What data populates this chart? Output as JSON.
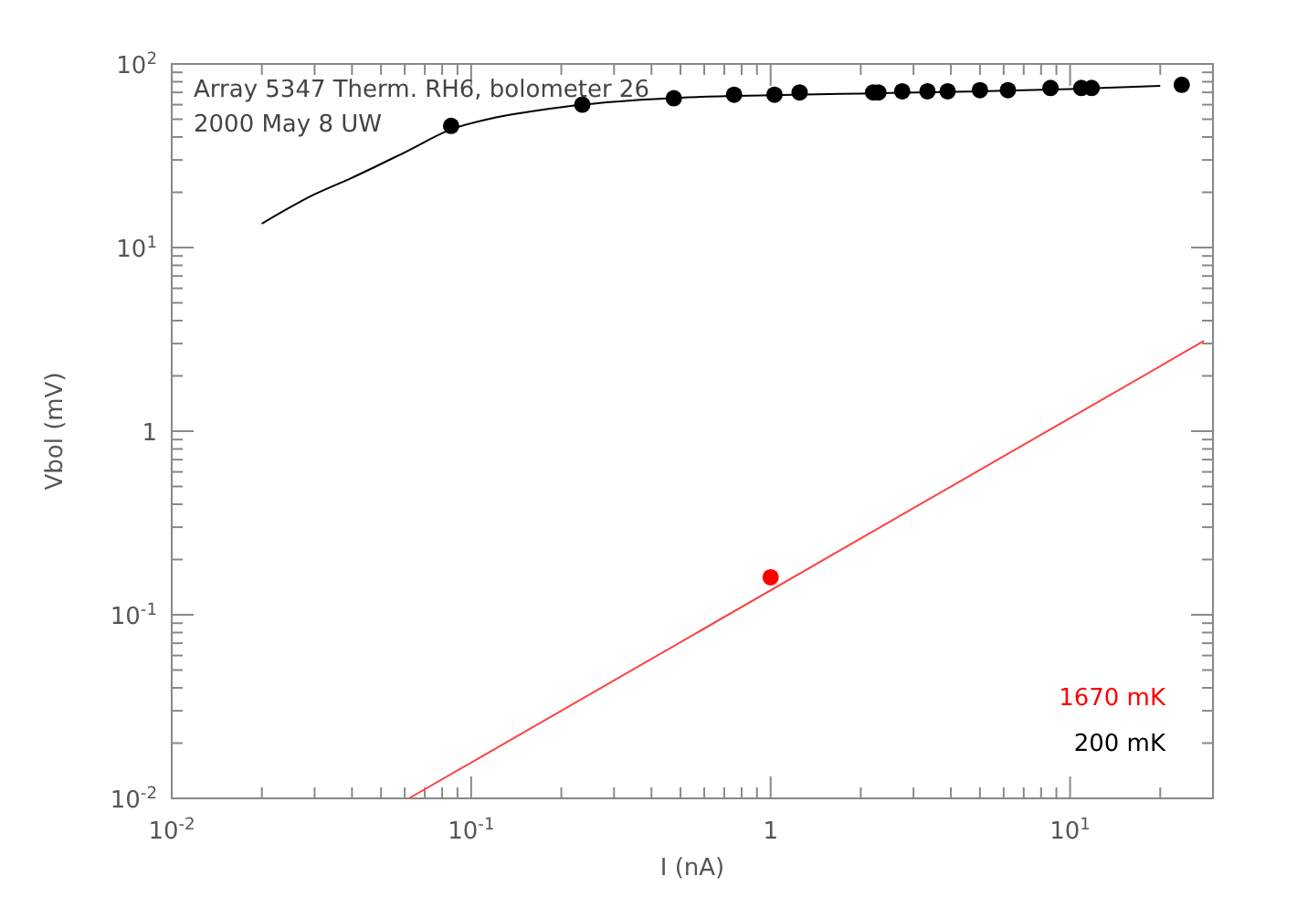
{
  "chart_data": {
    "type": "scatter",
    "xlabel": "I (nA)",
    "ylabel": "Vbol (mV)",
    "log": "xy",
    "xlim": [
      0.01,
      30
    ],
    "ylim": [
      0.01,
      100
    ],
    "xticks": [
      {
        "value": 0.01,
        "label": "10$^{-2}$"
      },
      {
        "value": 0.02,
        "label": null
      },
      {
        "value": 0.03,
        "label": null
      },
      {
        "value": 0.04,
        "label": null
      },
      {
        "value": 0.05,
        "label": null
      },
      {
        "value": 0.06,
        "label": null
      },
      {
        "value": 0.07,
        "label": null
      },
      {
        "value": 0.08,
        "label": null
      },
      {
        "value": 0.09,
        "label": null
      },
      {
        "value": 0.1,
        "label": "10$^{-1}$"
      },
      {
        "value": 0.2,
        "label": null
      },
      {
        "value": 0.3,
        "label": null
      },
      {
        "value": 0.4,
        "label": null
      },
      {
        "value": 0.5,
        "label": null
      },
      {
        "value": 0.6,
        "label": null
      },
      {
        "value": 0.7,
        "label": null
      },
      {
        "value": 0.8,
        "label": null
      },
      {
        "value": 0.9,
        "label": null
      },
      1,
      {
        "value": 2,
        "label": null
      },
      {
        "value": 3,
        "label": null
      },
      {
        "value": 4,
        "label": null
      },
      {
        "value": 5,
        "label": null
      },
      {
        "value": 6,
        "label": null
      },
      {
        "value": 7,
        "label": null
      },
      {
        "value": 8,
        "label": null
      },
      {
        "value": 9,
        "label": null
      },
      {
        "value": 10,
        "label": "10$^{1}$"
      },
      {
        "value": 20,
        "label": null
      }
    ],
    "yticks": [
      {
        "value": 0.01,
        "label": "10$^{-2}$"
      },
      {
        "value": 0.02,
        "label": null
      },
      {
        "value": 0.03,
        "label": null
      },
      {
        "value": 0.04,
        "label": null
      },
      {
        "value": 0.05,
        "label": null
      },
      {
        "value": 0.06,
        "label": null
      },
      {
        "value": 0.07,
        "label": null
      },
      {
        "value": 0.08,
        "label": null
      },
      {
        "value": 0.09,
        "label": null
      },
      {
        "value": 0.1,
        "label": "10$^{-1}$"
      },
      {
        "value": 0.2,
        "label": null
      },
      {
        "value": 0.3,
        "label": null
      },
      {
        "value": 0.4,
        "label": null
      },
      {
        "value": 0.5,
        "label": null
      },
      {
        "value": 0.6,
        "label": null
      },
      {
        "value": 0.7,
        "label": null
      },
      {
        "value": 0.8,
        "label": null
      },
      {
        "value": 0.9,
        "label": null
      },
      1,
      {
        "value": 2,
        "label": null
      },
      {
        "value": 3,
        "label": null
      },
      {
        "value": 4,
        "label": null
      },
      {
        "value": 5,
        "label": null
      },
      {
        "value": 6,
        "label": null
      },
      {
        "value": 7,
        "label": null
      },
      {
        "value": 8,
        "label": null
      },
      {
        "value": 9,
        "label": null
      },
      {
        "value": 10,
        "label": "10$^{1}$"
      },
      {
        "value": 20,
        "label": null
      },
      {
        "value": 30,
        "label": null
      },
      {
        "value": 40,
        "label": null
      },
      {
        "value": 50,
        "label": null
      },
      {
        "value": 60,
        "label": null
      },
      {
        "value": 70,
        "label": null
      },
      {
        "value": 80,
        "label": null
      },
      {
        "value": 90,
        "label": null
      },
      {
        "value": 100,
        "label": "10$^{2}$"
      }
    ],
    "grid": false,
    "marker": "circle",
    "legend": "bottom right",
    "annotations": [
      "Array 5347 Therm. RH6, bolometer 26",
      "2000 May 8 UW"
    ],
    "series": [
      {
        "type": "line",
        "marker": "none",
        "color": "#000000",
        "x": [
          0.02,
          0.03,
          0.04,
          0.06,
          0.0857,
          0.12,
          0.17,
          0.235,
          0.35,
          0.5,
          1,
          2,
          5,
          10,
          20
        ],
        "values": [
          13.5,
          19.5,
          24,
          33,
          44,
          51,
          56,
          60,
          63.5,
          65.5,
          67.5,
          69,
          71,
          73,
          76
        ]
      },
      {
        "name": "200 mK",
        "color": "#000000",
        "x": [
          0.0857,
          0.235,
          0.475,
          0.755,
          1.03,
          1.25,
          2.2,
          2.29,
          2.75,
          3.34,
          3.9,
          5.0,
          6.2,
          8.6,
          10.9,
          11.8,
          23.6
        ],
        "values": [
          46,
          60,
          65,
          68,
          68,
          70,
          70,
          70,
          71,
          71,
          71,
          72,
          72,
          74,
          74,
          74,
          77
        ]
      },
      {
        "type": "line",
        "marker": "none",
        "color": "#ff4040",
        "x": [
          0.062,
          28
        ],
        "values": [
          0.01,
          3.1
        ]
      },
      {
        "name": "1670 mK",
        "color": "#ff0000",
        "x": [
          1
        ],
        "values": [
          0.16
        ]
      }
    ]
  }
}
